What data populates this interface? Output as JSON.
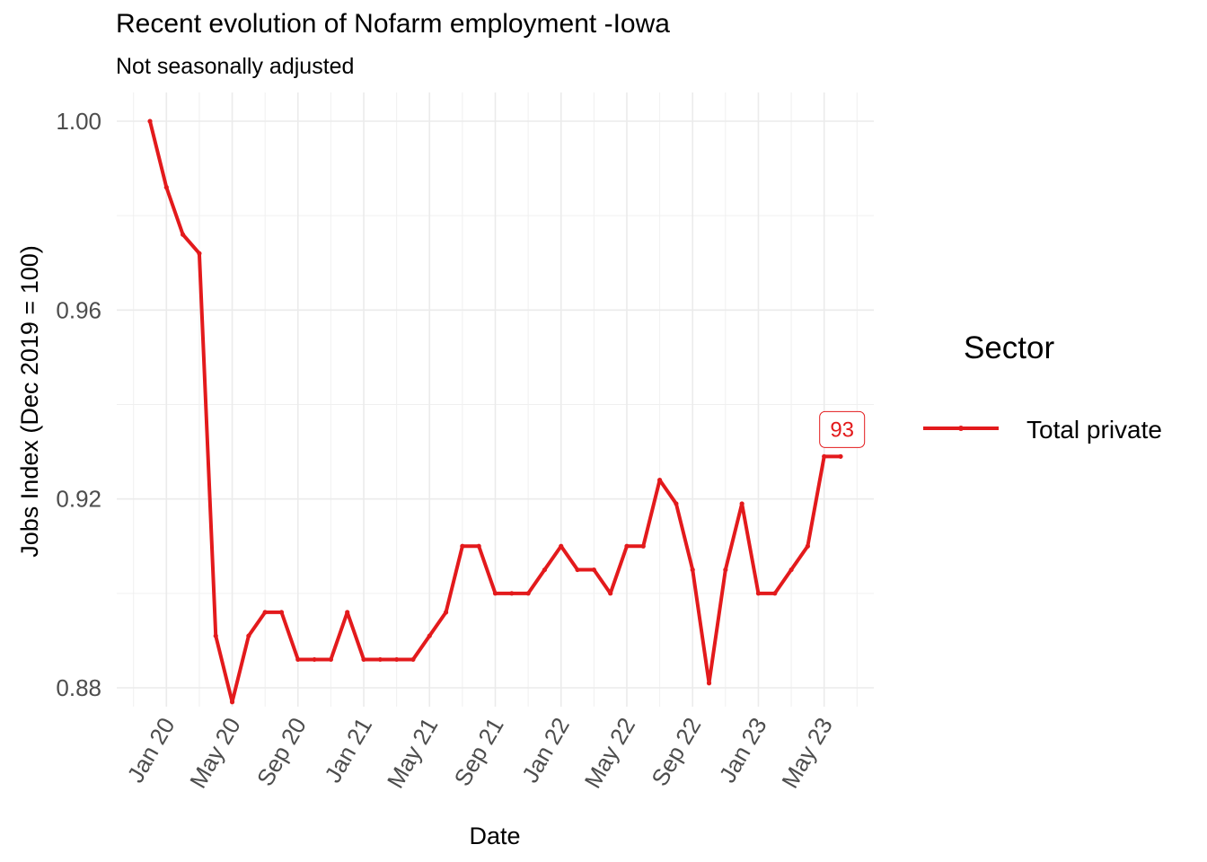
{
  "chart_data": {
    "type": "line",
    "title": "Recent evolution of Nofarm employment -Iowa",
    "subtitle": "Not seasonally adjusted",
    "xlabel": "Date",
    "ylabel": "Jobs Index (Dec 2019 = 100)",
    "ylim": [
      0.87,
      1.0
    ],
    "y_ticks": [
      {
        "value": 0.88,
        "label": "0.88"
      },
      {
        "value": 0.92,
        "label": "0.92"
      },
      {
        "value": 0.96,
        "label": "0.96"
      },
      {
        "value": 1.0,
        "label": "1.00"
      }
    ],
    "x_ticks": [
      {
        "value": "2020-01",
        "label": "Jan 20"
      },
      {
        "value": "2020-05",
        "label": "May 20"
      },
      {
        "value": "2020-09",
        "label": "Sep 20"
      },
      {
        "value": "2021-01",
        "label": "Jan 21"
      },
      {
        "value": "2021-05",
        "label": "May 21"
      },
      {
        "value": "2021-09",
        "label": "Sep 21"
      },
      {
        "value": "2022-01",
        "label": "Jan 22"
      },
      {
        "value": "2022-05",
        "label": "May 22"
      },
      {
        "value": "2022-09",
        "label": "Sep 22"
      },
      {
        "value": "2023-01",
        "label": "Jan 23"
      },
      {
        "value": "2023-05",
        "label": "May 23"
      }
    ],
    "grid": true,
    "legend": {
      "title": "Sector",
      "position": "right"
    },
    "series": [
      {
        "name": "Total private",
        "color": "#e31a1c",
        "x": [
          "2019-12",
          "2020-01",
          "2020-02",
          "2020-03",
          "2020-04",
          "2020-05",
          "2020-06",
          "2020-07",
          "2020-08",
          "2020-09",
          "2020-10",
          "2020-11",
          "2020-12",
          "2021-01",
          "2021-02",
          "2021-03",
          "2021-04",
          "2021-05",
          "2021-06",
          "2021-07",
          "2021-08",
          "2021-09",
          "2021-10",
          "2021-11",
          "2021-12",
          "2022-01",
          "2022-02",
          "2022-03",
          "2022-04",
          "2022-05",
          "2022-06",
          "2022-07",
          "2022-08",
          "2022-09",
          "2022-10",
          "2022-11",
          "2022-12",
          "2023-01",
          "2023-02",
          "2023-03",
          "2023-04",
          "2023-05",
          "2023-06"
        ],
        "values": [
          1.0,
          0.986,
          0.976,
          0.972,
          0.891,
          0.877,
          0.891,
          0.896,
          0.896,
          0.886,
          0.886,
          0.886,
          0.896,
          0.886,
          0.886,
          0.886,
          0.886,
          0.891,
          0.896,
          0.91,
          0.91,
          0.9,
          0.9,
          0.9,
          0.905,
          0.91,
          0.905,
          0.905,
          0.9,
          0.91,
          0.91,
          0.924,
          0.919,
          0.905,
          0.881,
          0.905,
          0.919,
          0.9,
          0.9,
          0.905,
          0.91,
          0.929,
          0.929
        ]
      }
    ],
    "annotations": [
      {
        "text": "93",
        "x": "2023-05",
        "y": 0.929
      }
    ]
  }
}
